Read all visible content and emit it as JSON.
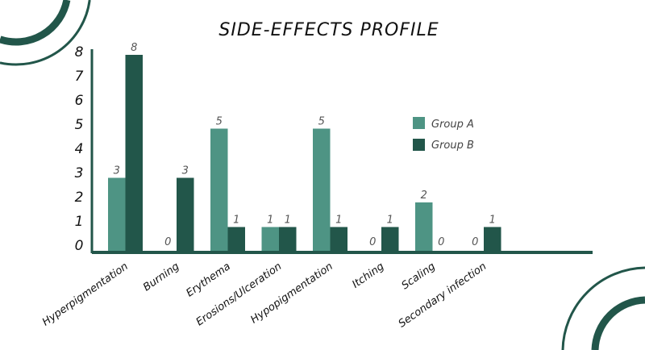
{
  "chart_data": {
    "type": "bar",
    "title": "SIDE-EFFECTS PROFILE",
    "categories": [
      "Hyperpigmentation",
      "Burning",
      "Erythema",
      "Erosions/Ulceration",
      "Hypopigmentation",
      "Itching",
      "Scaling",
      "Secondary  infection"
    ],
    "series": [
      {
        "name": "Group A",
        "color": "#4e9484",
        "values": [
          3,
          0,
          5,
          1,
          5,
          0,
          2,
          0
        ]
      },
      {
        "name": "Group B",
        "color": "#22564a",
        "values": [
          8,
          3,
          1,
          1,
          1,
          1,
          0,
          1
        ]
      }
    ],
    "yticks": [
      "0",
      "1",
      "2",
      "3",
      "4",
      "5",
      "6",
      "7",
      "8"
    ],
    "ylim": [
      0,
      8
    ],
    "xlabel": "",
    "ylabel": "",
    "grid": false,
    "legend": "right",
    "data_labels": true
  },
  "decor": {
    "accent": "#22564a"
  }
}
